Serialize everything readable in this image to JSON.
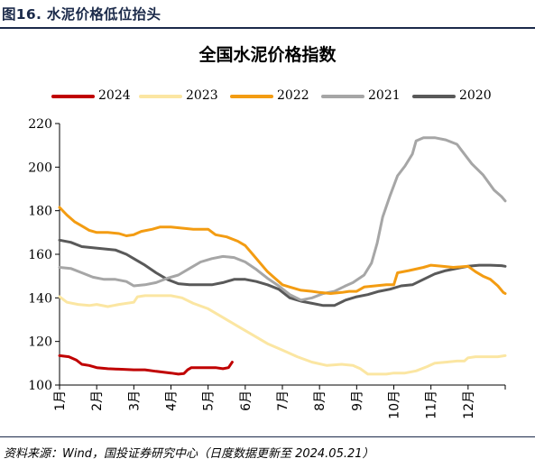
{
  "figure_label": "图16. 水泥价格低位抬头",
  "source_note": "资料来源：Wind，国投证券研究中心（日度数据更新至 2024.05.21）",
  "chart_data": {
    "type": "line",
    "title": "全国水泥价格指数",
    "xlabel": "",
    "ylabel": "",
    "ylim": [
      100,
      220
    ],
    "yticks": [
      100,
      120,
      140,
      160,
      180,
      200,
      220
    ],
    "xlim": [
      1,
      13
    ],
    "month_labels": [
      "1月",
      "2月",
      "3月",
      "4月",
      "5月",
      "6月",
      "7月",
      "8月",
      "9月",
      "10月",
      "11月",
      "12月"
    ],
    "grid": false,
    "legend_position": "top",
    "x_unit": "month",
    "series": [
      {
        "name": "2024",
        "color": "#c00000",
        "points": [
          [
            1.0,
            113.5
          ],
          [
            1.25,
            113.0
          ],
          [
            1.45,
            111.5
          ],
          [
            1.6,
            109.5
          ],
          [
            1.8,
            109.0
          ],
          [
            2.0,
            108.0
          ],
          [
            2.3,
            107.5
          ],
          [
            2.6,
            107.3
          ],
          [
            3.0,
            107.0
          ],
          [
            3.3,
            107.0
          ],
          [
            3.6,
            106.3
          ],
          [
            4.0,
            105.5
          ],
          [
            4.2,
            105.0
          ],
          [
            4.35,
            105.3
          ],
          [
            4.45,
            107.0
          ],
          [
            4.55,
            108.0
          ],
          [
            4.8,
            108.0
          ],
          [
            5.0,
            108.0
          ],
          [
            5.2,
            108.0
          ],
          [
            5.4,
            107.5
          ],
          [
            5.55,
            108.0
          ],
          [
            5.65,
            110.5
          ]
        ]
      },
      {
        "name": "2023",
        "color": "#fbe6a2",
        "points": [
          [
            1.0,
            140.5
          ],
          [
            1.2,
            138.0
          ],
          [
            1.5,
            137.0
          ],
          [
            1.8,
            136.5
          ],
          [
            2.0,
            137.0
          ],
          [
            2.3,
            136.0
          ],
          [
            2.6,
            137.0
          ],
          [
            3.0,
            138.0
          ],
          [
            3.1,
            140.5
          ],
          [
            3.3,
            141.0
          ],
          [
            3.6,
            141.0
          ],
          [
            4.0,
            141.0
          ],
          [
            4.3,
            140.0
          ],
          [
            4.6,
            137.5
          ],
          [
            5.0,
            135.0
          ],
          [
            5.4,
            131.0
          ],
          [
            5.8,
            127.0
          ],
          [
            6.2,
            123.0
          ],
          [
            6.6,
            119.0
          ],
          [
            7.0,
            116.0
          ],
          [
            7.4,
            113.0
          ],
          [
            7.8,
            110.5
          ],
          [
            8.2,
            109.0
          ],
          [
            8.6,
            109.5
          ],
          [
            8.9,
            109.0
          ],
          [
            9.1,
            107.5
          ],
          [
            9.3,
            105.0
          ],
          [
            9.5,
            105.0
          ],
          [
            9.8,
            105.0
          ],
          [
            10.0,
            105.5
          ],
          [
            10.3,
            105.5
          ],
          [
            10.6,
            106.5
          ],
          [
            10.9,
            108.5
          ],
          [
            11.1,
            110.0
          ],
          [
            11.4,
            110.5
          ],
          [
            11.7,
            111.0
          ],
          [
            11.9,
            111.0
          ],
          [
            12.0,
            112.5
          ],
          [
            12.2,
            113.0
          ],
          [
            12.5,
            113.0
          ],
          [
            12.8,
            113.0
          ],
          [
            13.0,
            113.5
          ]
        ]
      },
      {
        "name": "2022",
        "color": "#f39c12",
        "points": [
          [
            1.0,
            181.5
          ],
          [
            1.2,
            178.0
          ],
          [
            1.4,
            175.0
          ],
          [
            1.6,
            173.0
          ],
          [
            1.8,
            171.0
          ],
          [
            2.0,
            170.0
          ],
          [
            2.3,
            170.0
          ],
          [
            2.6,
            169.5
          ],
          [
            2.8,
            168.5
          ],
          [
            3.0,
            169.0
          ],
          [
            3.2,
            170.5
          ],
          [
            3.5,
            171.5
          ],
          [
            3.7,
            172.5
          ],
          [
            4.0,
            172.5
          ],
          [
            4.3,
            172.0
          ],
          [
            4.6,
            171.5
          ],
          [
            5.0,
            171.5
          ],
          [
            5.2,
            169.0
          ],
          [
            5.5,
            168.0
          ],
          [
            5.8,
            166.0
          ],
          [
            6.0,
            164.0
          ],
          [
            6.2,
            160.0
          ],
          [
            6.4,
            156.0
          ],
          [
            6.6,
            152.0
          ],
          [
            6.8,
            149.0
          ],
          [
            7.0,
            146.0
          ],
          [
            7.2,
            145.0
          ],
          [
            7.5,
            143.5
          ],
          [
            7.8,
            143.0
          ],
          [
            8.0,
            142.5
          ],
          [
            8.3,
            142.0
          ],
          [
            8.6,
            142.5
          ],
          [
            8.8,
            143.0
          ],
          [
            9.0,
            143.0
          ],
          [
            9.2,
            145.0
          ],
          [
            9.5,
            145.5
          ],
          [
            9.8,
            146.0
          ],
          [
            10.0,
            146.0
          ],
          [
            10.1,
            151.5
          ],
          [
            10.4,
            152.5
          ],
          [
            10.8,
            154.0
          ],
          [
            11.0,
            155.0
          ],
          [
            11.3,
            154.5
          ],
          [
            11.6,
            154.0
          ],
          [
            12.0,
            154.5
          ],
          [
            12.2,
            152.0
          ],
          [
            12.4,
            150.0
          ],
          [
            12.6,
            148.5
          ],
          [
            12.8,
            145.5
          ],
          [
            12.95,
            142.5
          ],
          [
            13.0,
            142.0
          ]
        ]
      },
      {
        "name": "2021",
        "color": "#a6a6a6",
        "points": [
          [
            1.0,
            154.0
          ],
          [
            1.3,
            153.5
          ],
          [
            1.6,
            151.5
          ],
          [
            1.9,
            149.5
          ],
          [
            2.2,
            148.5
          ],
          [
            2.5,
            148.5
          ],
          [
            2.8,
            147.5
          ],
          [
            3.0,
            145.5
          ],
          [
            3.3,
            146.0
          ],
          [
            3.6,
            147.0
          ],
          [
            3.9,
            149.0
          ],
          [
            4.2,
            150.5
          ],
          [
            4.5,
            153.5
          ],
          [
            4.8,
            156.5
          ],
          [
            5.1,
            158.0
          ],
          [
            5.4,
            159.0
          ],
          [
            5.7,
            158.5
          ],
          [
            6.0,
            156.5
          ],
          [
            6.3,
            153.0
          ],
          [
            6.6,
            149.0
          ],
          [
            6.9,
            145.5
          ],
          [
            7.2,
            141.5
          ],
          [
            7.5,
            139.0
          ],
          [
            7.8,
            140.0
          ],
          [
            8.1,
            142.0
          ],
          [
            8.4,
            143.0
          ],
          [
            8.7,
            145.5
          ],
          [
            8.9,
            147.0
          ],
          [
            9.2,
            150.5
          ],
          [
            9.4,
            156.0
          ],
          [
            9.55,
            165.0
          ],
          [
            9.7,
            177.0
          ],
          [
            9.9,
            187.0
          ],
          [
            10.1,
            196.0
          ],
          [
            10.3,
            200.5
          ],
          [
            10.5,
            206.0
          ],
          [
            10.6,
            212.0
          ],
          [
            10.8,
            213.5
          ],
          [
            11.1,
            213.5
          ],
          [
            11.4,
            212.5
          ],
          [
            11.7,
            210.5
          ],
          [
            11.9,
            206.0
          ],
          [
            12.1,
            201.5
          ],
          [
            12.4,
            196.5
          ],
          [
            12.7,
            189.5
          ],
          [
            12.9,
            186.5
          ],
          [
            13.0,
            184.5
          ]
        ]
      },
      {
        "name": "2020",
        "color": "#595959",
        "points": [
          [
            1.0,
            166.5
          ],
          [
            1.3,
            165.5
          ],
          [
            1.6,
            163.5
          ],
          [
            1.9,
            163.0
          ],
          [
            2.2,
            162.5
          ],
          [
            2.5,
            162.0
          ],
          [
            2.8,
            160.0
          ],
          [
            3.0,
            158.0
          ],
          [
            3.3,
            155.0
          ],
          [
            3.6,
            151.5
          ],
          [
            3.9,
            148.5
          ],
          [
            4.2,
            146.5
          ],
          [
            4.5,
            146.0
          ],
          [
            4.8,
            146.0
          ],
          [
            5.1,
            146.0
          ],
          [
            5.4,
            147.0
          ],
          [
            5.7,
            148.5
          ],
          [
            6.0,
            148.5
          ],
          [
            6.3,
            147.5
          ],
          [
            6.6,
            146.0
          ],
          [
            6.9,
            144.0
          ],
          [
            7.2,
            140.0
          ],
          [
            7.5,
            138.5
          ],
          [
            7.8,
            137.5
          ],
          [
            8.1,
            136.5
          ],
          [
            8.4,
            136.5
          ],
          [
            8.7,
            139.0
          ],
          [
            9.0,
            140.5
          ],
          [
            9.3,
            141.5
          ],
          [
            9.6,
            143.0
          ],
          [
            9.9,
            144.0
          ],
          [
            10.2,
            145.5
          ],
          [
            10.5,
            146.0
          ],
          [
            10.8,
            148.5
          ],
          [
            11.1,
            151.0
          ],
          [
            11.4,
            152.5
          ],
          [
            11.7,
            153.5
          ],
          [
            12.0,
            154.5
          ],
          [
            12.3,
            155.0
          ],
          [
            12.6,
            155.0
          ],
          [
            12.9,
            154.8
          ],
          [
            13.0,
            154.5
          ]
        ]
      }
    ]
  }
}
